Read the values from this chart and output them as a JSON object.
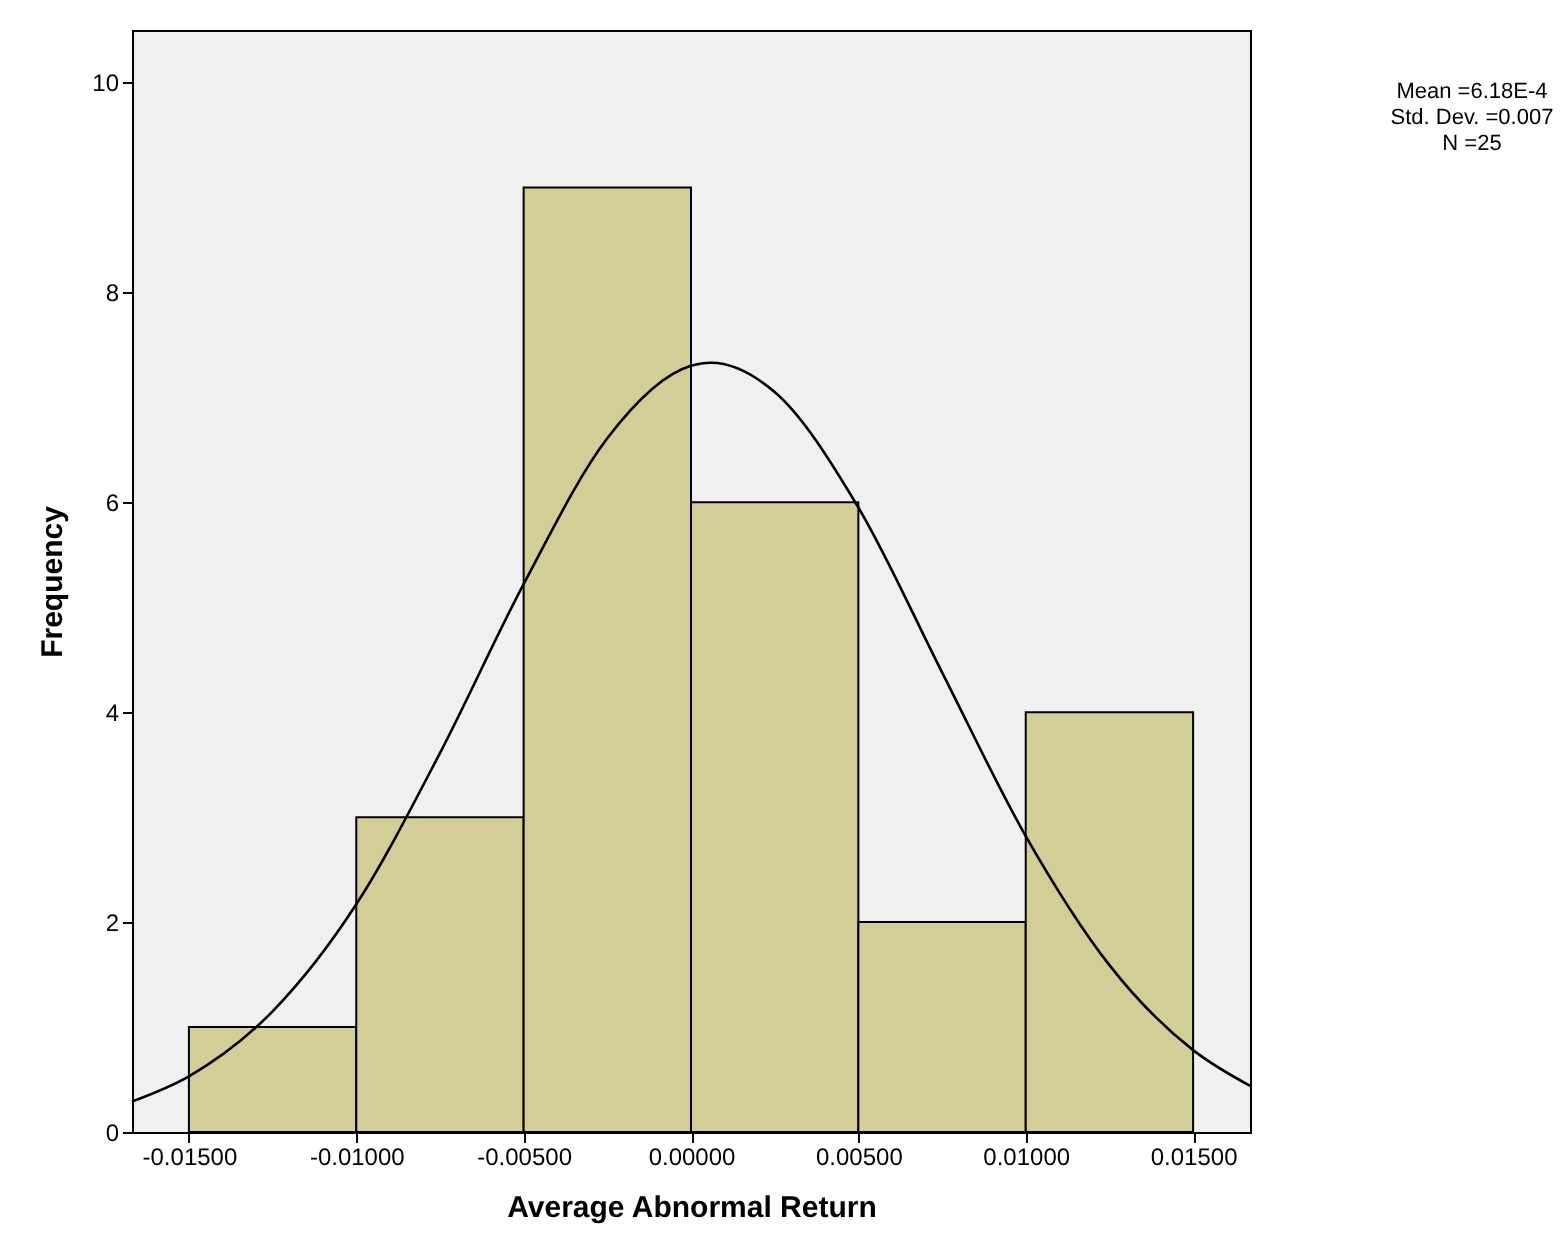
{
  "chart_data": {
    "type": "histogram",
    "bins": [
      -0.015,
      -0.01,
      -0.005,
      0.0,
      0.005,
      0.01,
      0.015
    ],
    "values": [
      1,
      3,
      9,
      6,
      2,
      4
    ],
    "color": "#d3ce97",
    "series": [
      {
        "type": "line",
        "color": "#000000",
        "x": [
          -0.0167,
          -0.015,
          -0.0125,
          -0.01,
          -0.0075,
          -0.005,
          -0.0025,
          0.0,
          0.0006,
          0.0025,
          0.005,
          0.0075,
          0.01,
          0.0125,
          0.015,
          0.0167
        ],
        "values": [
          0.29,
          0.53,
          1.15,
          2.17,
          3.61,
          5.22,
          6.61,
          7.3,
          7.33,
          7.05,
          5.95,
          4.38,
          2.82,
          1.59,
          0.78,
          0.44
        ]
      }
    ],
    "xlabel": "Average Abnormal Return",
    "ylabel": "Frequency",
    "xlim": [
      -0.0167,
      0.0167
    ],
    "xticks": [
      {
        "value": -0.015,
        "label": "-0.01500"
      },
      {
        "value": -0.01,
        "label": "-0.01000"
      },
      {
        "value": -0.005,
        "label": "-0.00500"
      },
      {
        "value": 0.0,
        "label": "0.00000"
      },
      {
        "value": 0.005,
        "label": "0.00500"
      },
      {
        "value": 0.01,
        "label": "0.01000"
      },
      {
        "value": 0.015,
        "label": "0.01500"
      }
    ],
    "ylim": [
      0,
      10.5
    ],
    "yticks": [
      0,
      2,
      4,
      6,
      8,
      10
    ],
    "grid": false,
    "annotations": [
      "Mean =6.18E-4",
      "Std. Dev. =0.007",
      "N =25"
    ]
  }
}
